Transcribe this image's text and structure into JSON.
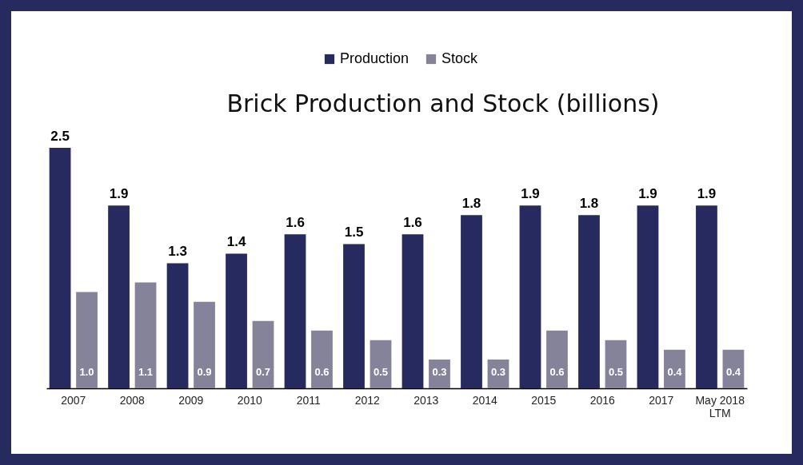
{
  "chart_data": {
    "type": "bar",
    "title": "Brick Production and Stock (billions)",
    "categories": [
      "2007",
      "2008",
      "2009",
      "2010",
      "2011",
      "2012",
      "2013",
      "2014",
      "2015",
      "2016",
      "2017",
      "May 2018\nLTM"
    ],
    "series": [
      {
        "name": "Production",
        "color": "#262a5e",
        "values": [
          2.5,
          1.9,
          1.3,
          1.4,
          1.6,
          1.5,
          1.6,
          1.8,
          1.9,
          1.8,
          1.9,
          1.9
        ],
        "value_labels": [
          "2.5",
          "1.9",
          "1.3",
          "1.4",
          "1.6",
          "1.5",
          "1.6",
          "1.8",
          "1.9",
          "1.8",
          "1.9",
          "1.9"
        ]
      },
      {
        "name": "Stock",
        "color": "#85839a",
        "values": [
          1.0,
          1.1,
          0.9,
          0.7,
          0.6,
          0.5,
          0.3,
          0.3,
          0.6,
          0.5,
          0.4,
          0.4
        ],
        "value_labels": [
          "1.0",
          "1.1",
          "0.9",
          "0.7",
          "0.6",
          "0.5",
          "0.3",
          "0.3",
          "0.6",
          "0.5",
          "0.4",
          "0.4"
        ]
      }
    ],
    "legend": "top"
  }
}
